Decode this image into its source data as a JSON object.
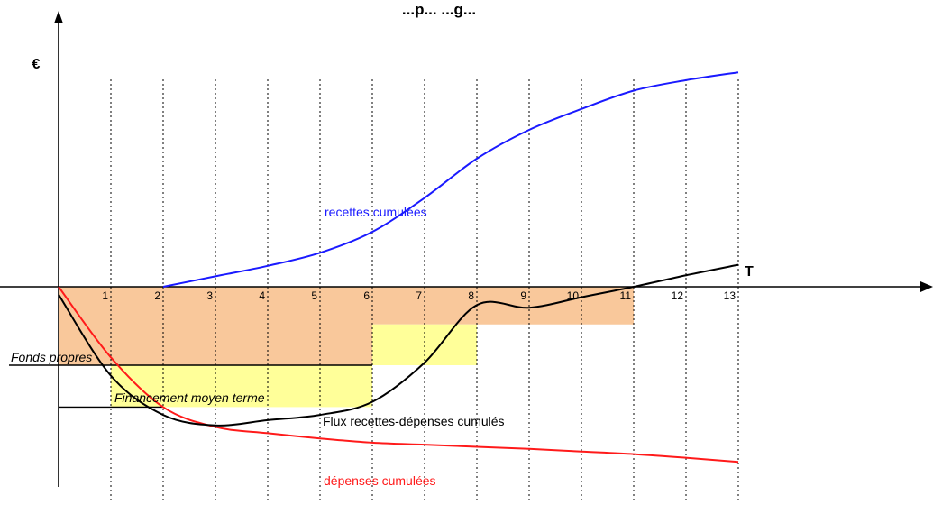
{
  "chart_data": {
    "type": "line",
    "title": "...p...  ...g...",
    "ylabel": "€",
    "xlabel": "T",
    "x_ticks": [
      1,
      2,
      3,
      4,
      5,
      6,
      7,
      8,
      9,
      10,
      11,
      12,
      13
    ],
    "xlim": [
      0,
      17
    ],
    "ylim": [
      -3.7,
      4.3
    ],
    "grid": "vertical dotted lines at each period",
    "legend": "none (inline labels)",
    "colors": {
      "recettes": "#1a1aff",
      "depenses": "#ff1a1a",
      "flux": "#000000",
      "fonds_propres_area": "#f9c89b",
      "financement_area": "#ffff99"
    },
    "series": [
      {
        "name": "recettes cumulées",
        "x": [
          2,
          3,
          4,
          5,
          6,
          7,
          8,
          9,
          10,
          11,
          12,
          13
        ],
        "values": [
          0,
          0.2,
          0.4,
          0.65,
          1.05,
          1.7,
          2.45,
          3.0,
          3.4,
          3.75,
          3.95,
          4.1
        ]
      },
      {
        "name": "dépenses cumulées",
        "x": [
          0,
          1,
          2,
          3,
          4,
          5,
          6,
          7,
          8,
          9,
          10,
          11,
          12,
          13
        ],
        "values": [
          0,
          -1.35,
          -2.3,
          -2.68,
          -2.8,
          -2.9,
          -2.98,
          -3.02,
          -3.06,
          -3.1,
          -3.15,
          -3.2,
          -3.27,
          -3.35
        ]
      },
      {
        "name": "Flux recettes-dépenses cumulés",
        "x": [
          0,
          1,
          2,
          3,
          4,
          5,
          6,
          7,
          8,
          9,
          10,
          11,
          12,
          13
        ],
        "values": [
          -0.15,
          -1.7,
          -2.45,
          -2.65,
          -2.55,
          -2.45,
          -2.2,
          -1.45,
          -0.35,
          -0.4,
          -0.2,
          0.0,
          0.22,
          0.42
        ]
      }
    ],
    "areas": [
      {
        "x0": 0,
        "x1": 6.0,
        "y0": 0,
        "y1": -1.5
      },
      {
        "x0": 6.0,
        "x1": 11.0,
        "y0": 0,
        "y1": -0.72
      },
      {
        "x0": 6.0,
        "x1": 8.0,
        "y0": -0.72,
        "y1": -1.5
      },
      {
        "x0": 1.0,
        "x1": 6.0,
        "y0": -1.5,
        "y1": -2.3
      }
    ],
    "annotations": {
      "fonds_propres": "Fonds propres",
      "financement": "Financement moyen terme",
      "recettes": "recettes cumulées",
      "depenses": "dépenses cumulées",
      "flux": "Flux recettes-dépenses cumulés"
    },
    "fonds_propres_level": -1.5,
    "financement_level": -2.3
  }
}
